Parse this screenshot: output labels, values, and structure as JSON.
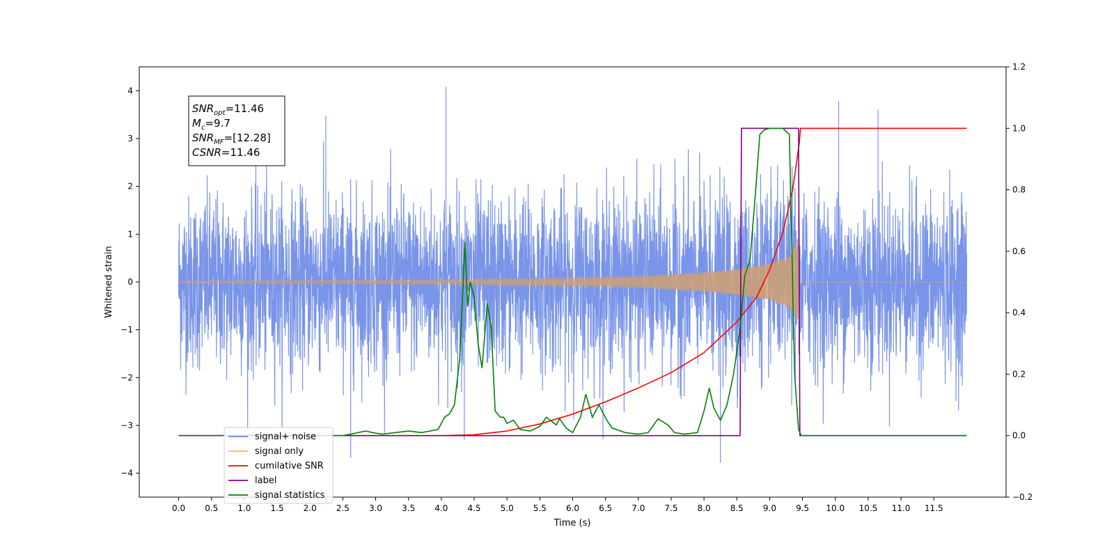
{
  "chart_data": {
    "type": "line",
    "xlabel": "Time (s)",
    "ylabel_left": "Whitened strain",
    "ylabel_right": "",
    "xlim": [
      -0.6,
      12.6
    ],
    "ylim_left": [
      -4.5,
      4.5
    ],
    "ylim_right": [
      -0.2,
      1.2
    ],
    "grid": false,
    "x_ticks": [
      "0.0",
      "0.5",
      "1.0",
      "1.5",
      "2.0",
      "2.5",
      "3.0",
      "3.5",
      "4.0",
      "4.5",
      "5.0",
      "5.5",
      "6.0",
      "6.5",
      "7.0",
      "7.5",
      "8.0",
      "8.5",
      "9.0",
      "9.5",
      "10.0",
      "10.5",
      "11.0",
      "11.5"
    ],
    "y_ticks_left": [
      "4",
      "3",
      "2",
      "1",
      "0",
      "−1",
      "−2",
      "−3",
      "−4"
    ],
    "y_ticks_right": [
      "1.2",
      "1.0",
      "0.8",
      "0.6",
      "0.4",
      "0.2",
      "0.0",
      "−0.2"
    ],
    "annotation_box": {
      "lines": [
        {
          "symbol": "SNR",
          "sub": "opt",
          "value": "=11.46"
        },
        {
          "symbol": "M",
          "sub": "c",
          "value": "=9.7"
        },
        {
          "symbol": "SNR",
          "sub": "MF",
          "value": "=[12.28]"
        },
        {
          "symbol": "CSNR",
          "sub": "",
          "value": "=11.46"
        }
      ]
    },
    "legend": {
      "placement": "lower-left",
      "entries": [
        {
          "label": "signal+ noise",
          "color": "#6a88e6"
        },
        {
          "label": "signal only",
          "color": "#ffb347"
        },
        {
          "label": "cumilative SNR",
          "color": "#ff0000"
        },
        {
          "label": "label",
          "color": "#800080"
        },
        {
          "label": "signal statistics",
          "color": "#008000"
        }
      ]
    },
    "series": [
      {
        "name": "signal+ noise",
        "axis": "left",
        "color": "#6a88e6",
        "x_range": [
          0.0,
          12.0
        ],
        "noise_std": 1.05,
        "approx_y_range": [
          -3.8,
          4.1
        ],
        "notable_peaks": [
          [
            4.07,
            4.08
          ],
          [
            2.24,
            3.47
          ],
          [
            10.05,
            3.78
          ],
          [
            10.65,
            3.6
          ],
          [
            4.35,
            -3.3
          ],
          [
            8.25,
            -3.78
          ],
          [
            2.62,
            -3.68
          ]
        ]
      },
      {
        "name": "signal only",
        "axis": "left",
        "color": "#ffb347",
        "chirp_start": 0.0,
        "chirp_end": 9.45,
        "amplitude_envelope": [
          [
            0.0,
            0.02
          ],
          [
            4.0,
            0.05
          ],
          [
            6.0,
            0.09
          ],
          [
            7.0,
            0.12
          ],
          [
            8.0,
            0.2
          ],
          [
            8.5,
            0.27
          ],
          [
            9.0,
            0.38
          ],
          [
            9.3,
            0.55
          ],
          [
            9.45,
            0.92
          ],
          [
            9.47,
            0.0
          ],
          [
            12.0,
            0.0
          ]
        ]
      },
      {
        "name": "cumilative SNR",
        "axis": "right",
        "color": "#ff0000",
        "x": [
          0.0,
          4.0,
          4.5,
          5.0,
          5.5,
          6.0,
          6.5,
          7.0,
          7.5,
          8.0,
          8.5,
          8.8,
          9.0,
          9.2,
          9.35,
          9.45,
          9.47,
          12.0
        ],
        "values": [
          0.0,
          0.0,
          0.003,
          0.015,
          0.038,
          0.07,
          0.11,
          0.155,
          0.205,
          0.27,
          0.37,
          0.45,
          0.54,
          0.66,
          0.8,
          0.95,
          1.0,
          1.0
        ]
      },
      {
        "name": "label",
        "axis": "right",
        "color": "#800080",
        "x": [
          0.0,
          8.55,
          8.57,
          9.44,
          9.46,
          12.0
        ],
        "values": [
          0.0,
          0.0,
          1.0,
          1.0,
          0.0,
          0.0
        ]
      },
      {
        "name": "signal statistics",
        "axis": "right",
        "color": "#008000",
        "x": [
          0.0,
          2.5,
          2.85,
          2.95,
          3.1,
          3.3,
          3.5,
          3.7,
          3.95,
          4.05,
          4.12,
          4.2,
          4.28,
          4.36,
          4.4,
          4.44,
          4.5,
          4.56,
          4.62,
          4.7,
          4.76,
          4.82,
          4.9,
          4.95,
          5.0,
          5.1,
          5.2,
          5.35,
          5.5,
          5.6,
          5.75,
          5.8,
          5.9,
          6.0,
          6.12,
          6.2,
          6.3,
          6.4,
          6.52,
          6.6,
          6.8,
          7.0,
          7.15,
          7.3,
          7.45,
          7.55,
          7.7,
          7.9,
          8.0,
          8.08,
          8.15,
          8.25,
          8.35,
          8.45,
          8.55,
          8.62,
          8.7,
          8.78,
          8.85,
          8.92,
          9.0,
          9.1,
          9.2,
          9.3,
          9.38,
          9.44,
          9.48,
          9.52,
          9.56,
          12.0
        ],
        "values": [
          0.0,
          0.0,
          0.015,
          0.01,
          0.005,
          0.01,
          0.015,
          0.01,
          0.02,
          0.06,
          0.07,
          0.1,
          0.25,
          0.63,
          0.42,
          0.5,
          0.45,
          0.3,
          0.22,
          0.43,
          0.35,
          0.08,
          0.06,
          0.06,
          0.04,
          0.05,
          0.02,
          0.015,
          0.03,
          0.06,
          0.035,
          0.055,
          0.025,
          0.01,
          0.06,
          0.135,
          0.06,
          0.1,
          0.05,
          0.025,
          0.01,
          0.005,
          0.01,
          0.055,
          0.035,
          0.01,
          0.005,
          0.01,
          0.08,
          0.155,
          0.09,
          0.05,
          0.1,
          0.2,
          0.35,
          0.52,
          0.57,
          0.78,
          0.98,
          0.995,
          1.0,
          1.0,
          1.0,
          0.98,
          0.2,
          0.02,
          0.0,
          0.0,
          0.0,
          0.0
        ]
      }
    ]
  }
}
